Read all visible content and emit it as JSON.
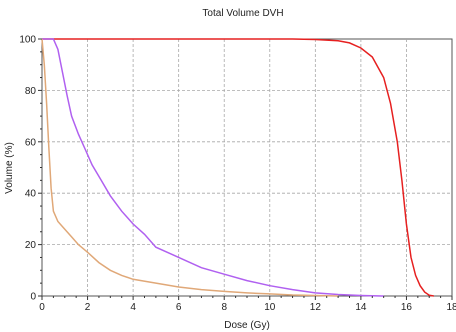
{
  "chart_data": {
    "type": "line",
    "title": "Total Volume DVH",
    "xlabel": "Dose (Gy)",
    "ylabel": "Volume (%)",
    "xlim": [
      0,
      18
    ],
    "ylim": [
      0,
      100
    ],
    "x_ticks": [
      0,
      2,
      4,
      6,
      8,
      10,
      12,
      14,
      16,
      18
    ],
    "y_ticks": [
      0,
      20,
      40,
      60,
      80,
      100
    ],
    "grid": true,
    "legend": "none",
    "series": [
      {
        "color": "#e62020",
        "points": [
          [
            0,
            100
          ],
          [
            11,
            100
          ],
          [
            12,
            99.8
          ],
          [
            13,
            99.3
          ],
          [
            13.5,
            98.5
          ],
          [
            14,
            96.5
          ],
          [
            14.5,
            93
          ],
          [
            15,
            85
          ],
          [
            15.3,
            75
          ],
          [
            15.6,
            60
          ],
          [
            15.8,
            45
          ],
          [
            16,
            28
          ],
          [
            16.2,
            15
          ],
          [
            16.4,
            8
          ],
          [
            16.6,
            4
          ],
          [
            16.8,
            1.5
          ],
          [
            17,
            0.3
          ],
          [
            17.2,
            0
          ]
        ]
      },
      {
        "color": "#b060f0",
        "points": [
          [
            0,
            100
          ],
          [
            0.5,
            100
          ],
          [
            0.7,
            96
          ],
          [
            0.9,
            87
          ],
          [
            1.1,
            78
          ],
          [
            1.3,
            70
          ],
          [
            1.6,
            63
          ],
          [
            1.9,
            57
          ],
          [
            2.2,
            51
          ],
          [
            2.6,
            45
          ],
          [
            3,
            39
          ],
          [
            3.5,
            33
          ],
          [
            4,
            28
          ],
          [
            4.5,
            24
          ],
          [
            5,
            19
          ],
          [
            5.5,
            17
          ],
          [
            6,
            15
          ],
          [
            7,
            11
          ],
          [
            8,
            8.5
          ],
          [
            9,
            6
          ],
          [
            10,
            4
          ],
          [
            11,
            2.5
          ],
          [
            12,
            1.2
          ],
          [
            13,
            0.6
          ],
          [
            14,
            0.2
          ],
          [
            15,
            0
          ]
        ]
      },
      {
        "color": "#e0a878",
        "points": [
          [
            0,
            100
          ],
          [
            0.1,
            90
          ],
          [
            0.2,
            75
          ],
          [
            0.3,
            58
          ],
          [
            0.4,
            42
          ],
          [
            0.5,
            33
          ],
          [
            0.7,
            29
          ],
          [
            1,
            26
          ],
          [
            1.3,
            23
          ],
          [
            1.6,
            20
          ],
          [
            2,
            17
          ],
          [
            2.5,
            13
          ],
          [
            3,
            10
          ],
          [
            3.5,
            8
          ],
          [
            4,
            6.5
          ],
          [
            5,
            5
          ],
          [
            6,
            3.5
          ],
          [
            7,
            2.5
          ],
          [
            8,
            1.8
          ],
          [
            9,
            1.2
          ],
          [
            10,
            0.8
          ],
          [
            11,
            0.4
          ],
          [
            12,
            0.2
          ],
          [
            13,
            0
          ]
        ]
      }
    ]
  }
}
